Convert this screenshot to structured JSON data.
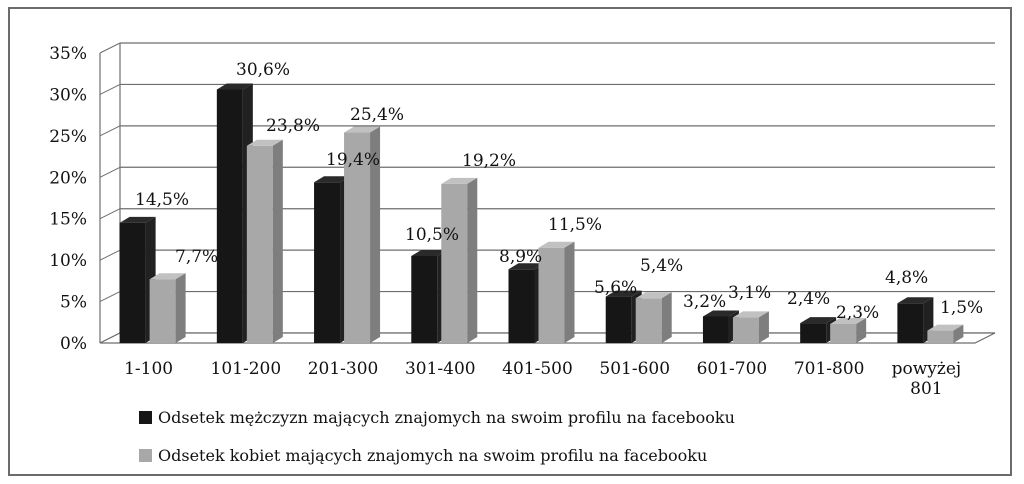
{
  "chart_data": {
    "type": "bar",
    "title": "",
    "xlabel": "",
    "ylabel": "",
    "ylim": [
      0,
      35
    ],
    "yticks": [
      "0%",
      "5%",
      "10%",
      "15%",
      "20%",
      "25%",
      "30%",
      "35%"
    ],
    "grid": true,
    "legend_position": "bottom",
    "categories": [
      "1-100",
      "101-200",
      "201-300",
      "301-400",
      "401-500",
      "501-600",
      "601-700",
      "701-800",
      "powyżej 801"
    ],
    "series": [
      {
        "name": "Odsetek  mężczyzn mających znajomych na swoim profilu  na facebooku",
        "color": "#161616",
        "values": [
          14.5,
          30.6,
          19.4,
          10.5,
          8.9,
          5.6,
          3.2,
          2.4,
          4.8
        ],
        "labels": [
          "14,5%",
          "30,6%",
          "19,4%",
          "10,5%",
          "8,9%",
          "5,6%",
          "3,2%",
          "2,4%",
          "4,8%"
        ]
      },
      {
        "name": "Odsetek  kobiet mających znajomych  na swoim profilu na facebooku",
        "color": "#a8a8a8",
        "values": [
          7.7,
          23.8,
          25.4,
          19.2,
          11.5,
          5.4,
          3.1,
          2.3,
          1.5
        ],
        "labels": [
          "7,7%",
          "23,8%",
          "25,4%",
          "19,2%",
          "11,5%",
          "5,4%",
          "3,1%",
          "2,3%",
          "1,5%"
        ]
      }
    ]
  }
}
